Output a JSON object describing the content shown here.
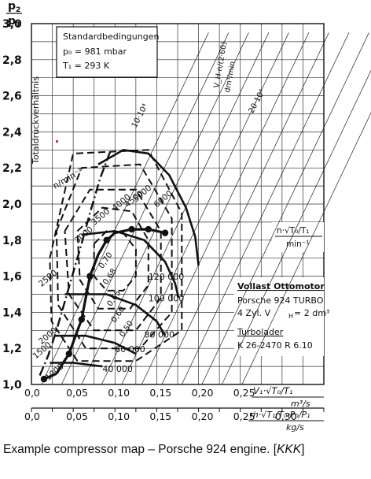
{
  "chart_data": {
    "type": "line",
    "title": "",
    "y_axis": {
      "label_num": "p",
      "label_num_sub": "2",
      "label_den": "p",
      "label_den_sub": "1",
      "side_label": "Totaldruckverhältnis",
      "range": [
        1.0,
        3.0
      ],
      "ticks": [
        "1,0",
        "1,2",
        "1,4",
        "1,6",
        "1,8",
        "2,0",
        "2,2",
        "2,4",
        "2,6",
        "2,8",
        "3,0"
      ]
    },
    "x_axis_upper": {
      "label": "V₁·√T₀/T₁",
      "unit": "m³/s",
      "range": [
        0.0,
        0.35
      ],
      "ticks": [
        "0,0",
        "0,05",
        "0,10",
        "0,15",
        "0,20",
        "0,25"
      ]
    },
    "x_axis_lower": {
      "label": "ṁ·√T₁/T₀·P₀/P₁",
      "unit": "kg/s",
      "range": [
        0.0,
        0.35
      ],
      "ticks": [
        "0,0",
        "0,05",
        "0,10",
        "0,15",
        "0,20",
        "0,25",
        "0,30"
      ]
    },
    "grid": true,
    "conditions_box": {
      "title": "Standardbedingungen",
      "line1": "p₀ = 981 mbar",
      "line2": "T₁ = 293 K"
    },
    "engine_box": {
      "title": "Vollast Ottomotor",
      "line1": "Porsche 924 TURBO",
      "line2": "4 Zyl.  V",
      "line2_sub": "H",
      "line2_tail": " = 2 dm³",
      "turbo_title": "Turbolader",
      "turbo_line": "K 26-2470 R 6.10"
    },
    "speed_axis_label": "n/min⁻¹",
    "corrected_speed_label": "n·√T₀/T₁",
    "corrected_speed_unit": "min⁻¹",
    "engine_flow_label": "V_H·n/(2·60)",
    "engine_flow_unit": "dm³/min",
    "scale_labels": [
      {
        "text": "10·10⁴",
        "x": 0.125,
        "y": 2.42
      },
      {
        "text": "20·10⁴",
        "x": 0.265,
        "y": 2.5
      }
    ],
    "speed_lines": [
      {
        "label": "40 000",
        "label_at": [
          0.085,
          1.07
        ],
        "points": [
          [
            0.022,
            1.12
          ],
          [
            0.05,
            1.12
          ],
          [
            0.085,
            1.1
          ]
        ]
      },
      {
        "label": "60 000",
        "label_at": [
          0.1,
          1.18
        ],
        "points": [
          [
            0.028,
            1.27
          ],
          [
            0.065,
            1.27
          ],
          [
            0.1,
            1.23
          ],
          [
            0.125,
            1.17
          ]
        ]
      },
      {
        "label": "80 000",
        "label_at": [
          0.135,
          1.26
        ],
        "points": [
          [
            0.04,
            1.5
          ],
          [
            0.09,
            1.5
          ],
          [
            0.125,
            1.44
          ],
          [
            0.15,
            1.35
          ],
          [
            0.16,
            1.27
          ]
        ]
      },
      {
        "label": "100 000",
        "label_at": [
          0.14,
          1.46
        ],
        "points": [
          [
            0.06,
            1.83
          ],
          [
            0.1,
            1.85
          ],
          [
            0.135,
            1.8
          ],
          [
            0.16,
            1.68
          ],
          [
            0.172,
            1.56
          ],
          [
            0.176,
            1.48
          ]
        ]
      },
      {
        "label": "120 000",
        "label_at": [
          0.14,
          1.58
        ],
        "points": [
          [
            0.08,
            2.22
          ],
          [
            0.11,
            2.3
          ],
          [
            0.14,
            2.28
          ],
          [
            0.165,
            2.16
          ],
          [
            0.185,
            1.98
          ],
          [
            0.196,
            1.82
          ],
          [
            0.2,
            1.66
          ]
        ]
      }
    ],
    "surge_line": {
      "points": [
        [
          0.01,
          1.05
        ],
        [
          0.02,
          1.16
        ],
        [
          0.03,
          1.3
        ],
        [
          0.04,
          1.46
        ],
        [
          0.05,
          1.62
        ],
        [
          0.06,
          1.78
        ],
        [
          0.07,
          1.95
        ],
        [
          0.082,
          2.14
        ],
        [
          0.095,
          2.3
        ]
      ]
    },
    "efficiency_islands": [
      {
        "label": "0,70",
        "label_at": [
          0.085,
          1.64
        ],
        "points": [
          [
            0.075,
            1.78
          ],
          [
            0.09,
            1.85
          ],
          [
            0.11,
            1.84
          ],
          [
            0.125,
            1.75
          ],
          [
            0.125,
            1.6
          ],
          [
            0.11,
            1.52
          ],
          [
            0.09,
            1.52
          ],
          [
            0.075,
            1.6
          ],
          [
            0.075,
            1.78
          ]
        ]
      },
      {
        "label": "0,68",
        "label_at": [
          0.09,
          1.55
        ],
        "points": [
          [
            0.055,
            1.85
          ],
          [
            0.085,
            1.98
          ],
          [
            0.12,
            1.96
          ],
          [
            0.14,
            1.8
          ],
          [
            0.14,
            1.55
          ],
          [
            0.118,
            1.42
          ],
          [
            0.08,
            1.42
          ],
          [
            0.058,
            1.58
          ],
          [
            0.055,
            1.85
          ]
        ]
      },
      {
        "label": "0,65",
        "label_at": [
          0.095,
          1.43
        ],
        "points": [
          [
            0.04,
            1.85
          ],
          [
            0.07,
            2.08
          ],
          [
            0.125,
            2.08
          ],
          [
            0.155,
            1.85
          ],
          [
            0.155,
            1.48
          ],
          [
            0.125,
            1.3
          ],
          [
            0.075,
            1.3
          ],
          [
            0.045,
            1.5
          ],
          [
            0.04,
            1.85
          ]
        ]
      },
      {
        "label": "0,60",
        "label_at": [
          0.1,
          1.34
        ],
        "points": [
          [
            0.03,
            1.85
          ],
          [
            0.06,
            2.2
          ],
          [
            0.13,
            2.22
          ],
          [
            0.168,
            1.92
          ],
          [
            0.168,
            1.4
          ],
          [
            0.13,
            1.2
          ],
          [
            0.065,
            1.2
          ],
          [
            0.032,
            1.44
          ],
          [
            0.03,
            1.85
          ]
        ]
      },
      {
        "label": "0,50",
        "label_at": [
          0.11,
          1.26
        ],
        "points": [
          [
            0.022,
            1.7
          ],
          [
            0.05,
            2.28
          ],
          [
            0.14,
            2.3
          ],
          [
            0.18,
            1.95
          ],
          [
            0.18,
            1.3
          ],
          [
            0.125,
            1.13
          ],
          [
            0.055,
            1.13
          ],
          [
            0.024,
            1.35
          ],
          [
            0.022,
            1.7
          ]
        ]
      }
    ],
    "operating_lines": [
      {
        "label": "1000",
        "label_at": [
          0.02,
          1.02
        ],
        "points": [
          [
            0.015,
            1.03
          ],
          [
            0.02,
            1.04
          ],
          [
            0.03,
            1.06
          ]
        ]
      },
      {
        "label": "1500",
        "label_at": [
          0.005,
          1.14
        ],
        "points": [
          [
            0.03,
            1.06
          ],
          [
            0.038,
            1.12
          ],
          [
            0.045,
            1.17
          ]
        ]
      },
      {
        "label": "2000",
        "label_at": [
          0.012,
          1.22
        ],
        "points": [
          [
            0.045,
            1.17
          ],
          [
            0.052,
            1.26
          ],
          [
            0.06,
            1.36
          ]
        ]
      },
      {
        "label": "2500",
        "label_at": [
          0.012,
          1.54
        ],
        "points": [
          [
            0.06,
            1.36
          ],
          [
            0.065,
            1.48
          ],
          [
            0.07,
            1.6
          ]
        ]
      },
      {
        "label": "3000",
        "label_at": [
          0.055,
          1.78
        ],
        "points": [
          [
            0.07,
            1.6
          ],
          [
            0.08,
            1.72
          ],
          [
            0.09,
            1.8
          ]
        ]
      },
      {
        "label": "3500",
        "label_at": [
          0.075,
          1.88
        ],
        "points": [
          [
            0.09,
            1.8
          ],
          [
            0.1,
            1.84
          ],
          [
            0.12,
            1.86
          ]
        ]
      },
      {
        "label": "4000",
        "label_at": [
          0.1,
          1.96
        ],
        "points": [
          [
            0.12,
            1.86
          ],
          [
            0.13,
            1.86
          ],
          [
            0.14,
            1.86
          ]
        ]
      },
      {
        "label": "4500",
        "label_at": [
          0.115,
          1.98
        ],
        "points": [
          [
            0.14,
            1.86
          ],
          [
            0.15,
            1.85
          ],
          [
            0.16,
            1.84
          ]
        ]
      },
      {
        "label": "5000",
        "label_at": [
          0.125,
          2.01
        ],
        "points": [
          [
            0.16,
            1.84
          ]
        ]
      },
      {
        "label": "6000",
        "label_at": [
          0.15,
          1.98
        ],
        "points": [
          [
            0.16,
            1.84
          ]
        ]
      }
    ],
    "operating_dots": [
      [
        0.015,
        1.03
      ],
      [
        0.045,
        1.17
      ],
      [
        0.06,
        1.36
      ],
      [
        0.07,
        1.6
      ],
      [
        0.09,
        1.8
      ],
      [
        0.12,
        1.86
      ],
      [
        0.14,
        1.86
      ],
      [
        0.16,
        1.84
      ]
    ]
  },
  "caption": {
    "text": "Example compressor map – Porsche 924 engine. [",
    "source": "KKK",
    "close": "]"
  }
}
